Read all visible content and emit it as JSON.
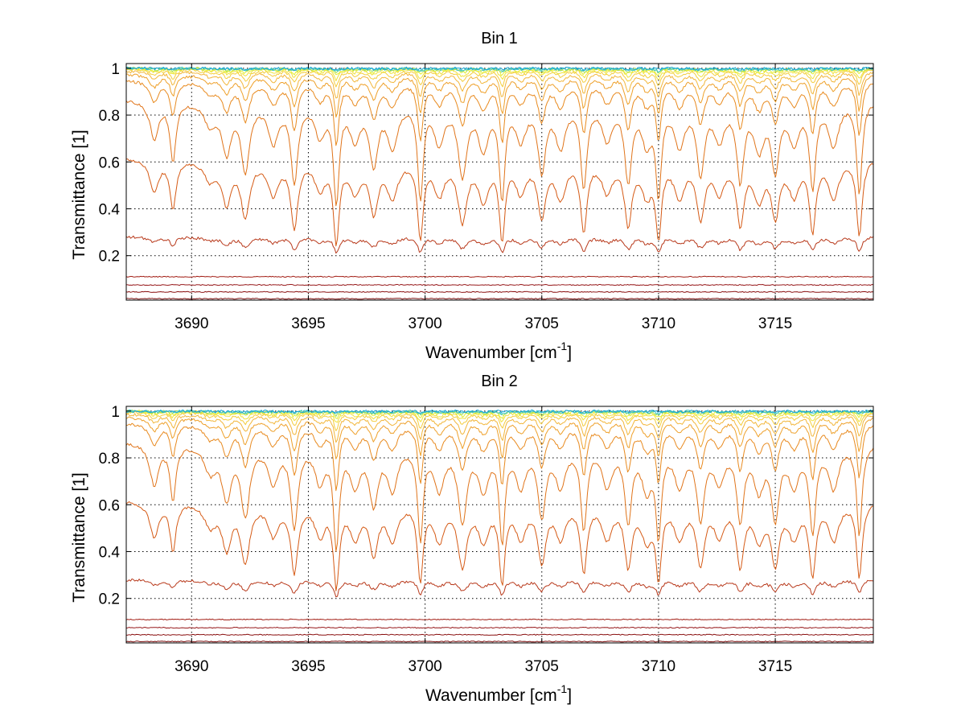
{
  "chart_data": [
    {
      "type": "line",
      "title": "Bin 1",
      "xlabel": "Wavenumber [cm",
      "xlabel_sup": "-1",
      "xlabel_close": "]",
      "ylabel": "Transmittance [1]",
      "xlim": [
        3687.2,
        3719.2
      ],
      "ylim": [
        0.01,
        1.02
      ],
      "xticks": [
        3690,
        3695,
        3700,
        3705,
        3710,
        3715
      ],
      "yticks": [
        0.2,
        0.4,
        0.6,
        0.8,
        1
      ],
      "xtick_labels": [
        "3690",
        "3695",
        "3700",
        "3705",
        "3710",
        "3715"
      ],
      "ytick_labels": [
        "0.2",
        "0.4",
        "0.6",
        "0.8",
        "1"
      ],
      "grid": true,
      "line_positions": [
        3688.4,
        3689.2,
        3690.8,
        3691.5,
        3692.3,
        3693.5,
        3694.4,
        3695.5,
        3696.2,
        3697.0,
        3697.8,
        3698.6,
        3699.8,
        3700.6,
        3701.6,
        3702.5,
        3703.3,
        3704.1,
        3705.0,
        3705.8,
        3706.8,
        3707.8,
        3708.7,
        3709.5,
        3710.0,
        3710.9,
        3711.8,
        3712.6,
        3713.5,
        3714.3,
        3715.0,
        3715.8,
        3716.6,
        3717.5,
        3718.6
      ],
      "line_depths": [
        0.5,
        0.85,
        0.3,
        0.7,
        1.0,
        0.55,
        1.25,
        0.45,
        1.7,
        0.5,
        0.9,
        0.6,
        1.6,
        0.55,
        1.1,
        0.65,
        1.6,
        0.5,
        1.0,
        0.6,
        1.35,
        0.5,
        1.2,
        0.55,
        1.5,
        0.6,
        1.05,
        0.5,
        1.2,
        0.65,
        1.0,
        0.55,
        1.35,
        0.6,
        1.5
      ],
      "line_widths": [
        0.22,
        0.14,
        0.3,
        0.22,
        0.2,
        0.25,
        0.16,
        0.25,
        0.12,
        0.25,
        0.2,
        0.25,
        0.12,
        0.25,
        0.2,
        0.25,
        0.12,
        0.25,
        0.18,
        0.25,
        0.14,
        0.25,
        0.16,
        0.25,
        0.12,
        0.25,
        0.18,
        0.25,
        0.16,
        0.25,
        0.18,
        0.25,
        0.14,
        0.25,
        0.12
      ],
      "series": [
        {
          "color": "#7a0d0d",
          "level": 0.016,
          "strength": 0.0
        },
        {
          "color": "#8a1010",
          "level": 0.045,
          "strength": 0.0
        },
        {
          "color": "#96181a",
          "level": 0.075,
          "strength": 0.0
        },
        {
          "color": "#a21d14",
          "level": 0.11,
          "strength": 0.0
        },
        {
          "color": "#b8391b",
          "level": 0.28,
          "strength": 0.05
        },
        {
          "color": "#d55a15",
          "level": 0.62,
          "strength": 0.16
        },
        {
          "color": "#e0741a",
          "level": 0.87,
          "strength": 0.13
        },
        {
          "color": "#e88a1f",
          "level": 0.95,
          "strength": 0.06
        },
        {
          "color": "#eea02a",
          "level": 0.975,
          "strength": 0.035
        },
        {
          "color": "#f2b63a",
          "level": 0.988,
          "strength": 0.022
        },
        {
          "color": "#f4cd3c",
          "level": 0.994,
          "strength": 0.013
        },
        {
          "color": "#f0e23c",
          "level": 0.997,
          "strength": 0.008
        },
        {
          "color": "#e4ef30",
          "level": 0.999,
          "strength": 0.005
        },
        {
          "color": "#9fdb60",
          "level": 1.0,
          "strength": 0.003
        },
        {
          "color": "#38c7c9",
          "level": 1.0,
          "strength": 0.002
        },
        {
          "color": "#18a6d6",
          "level": 1.0,
          "strength": 0.001
        }
      ]
    },
    {
      "type": "line",
      "title": "Bin 2",
      "xlabel": "Wavenumber [cm",
      "xlabel_sup": "-1",
      "xlabel_close": "]",
      "ylabel": "Transmittance [1]",
      "xlim": [
        3687.2,
        3719.2
      ],
      "ylim": [
        0.01,
        1.02
      ],
      "xticks": [
        3690,
        3695,
        3700,
        3705,
        3710,
        3715
      ],
      "yticks": [
        0.2,
        0.4,
        0.6,
        0.8,
        1
      ],
      "xtick_labels": [
        "3690",
        "3695",
        "3700",
        "3705",
        "3710",
        "3715"
      ],
      "ytick_labels": [
        "0.2",
        "0.4",
        "0.6",
        "0.8",
        "1"
      ],
      "grid": true,
      "line_positions": [
        3688.4,
        3689.2,
        3690.8,
        3691.5,
        3692.3,
        3693.5,
        3694.4,
        3695.5,
        3696.2,
        3697.0,
        3697.8,
        3698.6,
        3699.8,
        3700.6,
        3701.6,
        3702.5,
        3703.3,
        3704.1,
        3705.0,
        3705.8,
        3706.8,
        3707.8,
        3708.7,
        3709.5,
        3710.0,
        3710.9,
        3711.8,
        3712.6,
        3713.5,
        3714.3,
        3715.0,
        3715.8,
        3716.6,
        3717.5,
        3718.6
      ],
      "line_depths": [
        0.55,
        0.8,
        0.35,
        0.75,
        1.05,
        0.5,
        1.3,
        0.5,
        1.75,
        0.55,
        0.85,
        0.6,
        1.55,
        0.6,
        1.15,
        0.6,
        1.6,
        0.55,
        1.05,
        0.55,
        1.3,
        0.55,
        1.15,
        0.6,
        1.45,
        0.55,
        1.1,
        0.5,
        1.15,
        0.6,
        1.1,
        0.55,
        1.4,
        0.6,
        1.45
      ],
      "line_widths": [
        0.22,
        0.14,
        0.3,
        0.22,
        0.2,
        0.25,
        0.16,
        0.25,
        0.12,
        0.25,
        0.2,
        0.25,
        0.12,
        0.25,
        0.2,
        0.25,
        0.12,
        0.25,
        0.18,
        0.25,
        0.14,
        0.25,
        0.16,
        0.25,
        0.12,
        0.25,
        0.18,
        0.25,
        0.16,
        0.25,
        0.18,
        0.25,
        0.14,
        0.25,
        0.12
      ],
      "series": [
        {
          "color": "#7a0d0d",
          "level": 0.016,
          "strength": 0.0
        },
        {
          "color": "#8a1010",
          "level": 0.045,
          "strength": 0.0
        },
        {
          "color": "#96181a",
          "level": 0.075,
          "strength": 0.0
        },
        {
          "color": "#a21d14",
          "level": 0.11,
          "strength": 0.0
        },
        {
          "color": "#b8391b",
          "level": 0.28,
          "strength": 0.05
        },
        {
          "color": "#d55a15",
          "level": 0.62,
          "strength": 0.16
        },
        {
          "color": "#e0741a",
          "level": 0.87,
          "strength": 0.13
        },
        {
          "color": "#e88a1f",
          "level": 0.95,
          "strength": 0.06
        },
        {
          "color": "#eea02a",
          "level": 0.975,
          "strength": 0.035
        },
        {
          "color": "#f2b63a",
          "level": 0.988,
          "strength": 0.022
        },
        {
          "color": "#f4cd3c",
          "level": 0.994,
          "strength": 0.013
        },
        {
          "color": "#f0e23c",
          "level": 0.997,
          "strength": 0.008
        },
        {
          "color": "#e4ef30",
          "level": 0.999,
          "strength": 0.005
        },
        {
          "color": "#9fdb60",
          "level": 1.0,
          "strength": 0.003
        },
        {
          "color": "#38c7c9",
          "level": 1.0,
          "strength": 0.002
        },
        {
          "color": "#18a6d6",
          "level": 1.0,
          "strength": 0.001
        }
      ]
    }
  ]
}
